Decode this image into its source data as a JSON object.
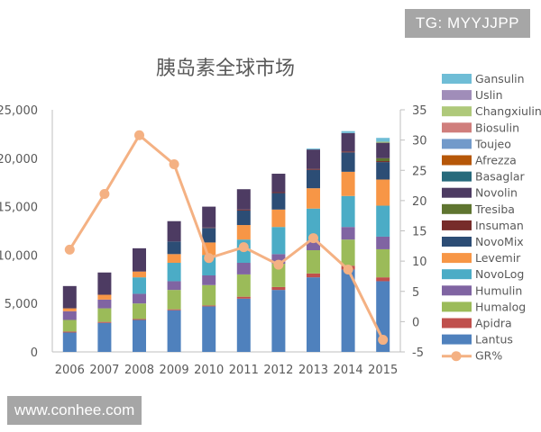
{
  "watermarks": {
    "top": "TG: MYYJJPP",
    "bottom": "www.conhee.com"
  },
  "chart_data": {
    "type": "bar+line",
    "title": "胰岛素全球市场",
    "categories": [
      "2006",
      "2007",
      "2008",
      "2009",
      "2010",
      "2011",
      "2012",
      "2013",
      "2014",
      "2015"
    ],
    "y_left": {
      "min": 0,
      "max": 25000,
      "ticks": [
        "0",
        "5,000",
        "10,000",
        "15,000",
        "20,000",
        "25,000"
      ]
    },
    "y_right": {
      "min": -5,
      "max": 35,
      "ticks": [
        "-5",
        "0",
        "5",
        "10",
        "15",
        "20",
        "25",
        "30",
        "35"
      ]
    },
    "grid": false,
    "legend_position": "right",
    "stacked_series": [
      {
        "name": "Lantus",
        "color": "#4f81bd",
        "values": [
          2000,
          3000,
          3300,
          4300,
          4700,
          5500,
          6400,
          7700,
          8500,
          7300
        ]
      },
      {
        "name": "Apidra",
        "color": "#c0504d",
        "values": [
          100,
          100,
          100,
          100,
          100,
          200,
          300,
          400,
          400,
          400
        ]
      },
      {
        "name": "Humalog",
        "color": "#9bbb59",
        "values": [
          1200,
          1400,
          1600,
          2000,
          2100,
          2300,
          2400,
          2400,
          2700,
          2900
        ]
      },
      {
        "name": "Humulin",
        "color": "#8064a2",
        "values": [
          900,
          900,
          1000,
          900,
          1000,
          1200,
          1000,
          1000,
          1300,
          1300
        ]
      },
      {
        "name": "NovoLog",
        "color": "#4bacc6",
        "values": [
          0,
          0,
          1700,
          1900,
          2100,
          2400,
          2800,
          3300,
          3200,
          3200
        ]
      },
      {
        "name": "Levemir",
        "color": "#f79646",
        "values": [
          300,
          500,
          600,
          900,
          1300,
          1500,
          1800,
          2100,
          2500,
          2700
        ]
      },
      {
        "name": "NovoMix",
        "color": "#2c4d75",
        "values": [
          0,
          0,
          0,
          1300,
          1500,
          1500,
          1700,
          1900,
          2000,
          1800
        ]
      },
      {
        "name": "Insuman",
        "color": "#772c2a",
        "values": [
          0,
          0,
          0,
          0,
          50,
          100,
          100,
          100,
          100,
          100
        ]
      },
      {
        "name": "Tresiba",
        "color": "#5f7530",
        "values": [
          0,
          0,
          0,
          0,
          0,
          0,
          0,
          0,
          0,
          300
        ]
      },
      {
        "name": "Novolin",
        "color": "#4d3b62",
        "values": [
          2300,
          2300,
          2400,
          2100,
          2150,
          2100,
          1900,
          2000,
          1900,
          1600
        ]
      },
      {
        "name": "Basaglar",
        "color": "#276a7c",
        "values": [
          0,
          0,
          0,
          0,
          0,
          0,
          0,
          0,
          0,
          0
        ]
      },
      {
        "name": "Afrezza",
        "color": "#b65708",
        "values": [
          0,
          0,
          0,
          0,
          0,
          0,
          0,
          0,
          0,
          0
        ]
      },
      {
        "name": "Toujeo",
        "color": "#729aca",
        "values": [
          0,
          0,
          0,
          0,
          0,
          0,
          0,
          0,
          0,
          0
        ]
      },
      {
        "name": "Biosulin",
        "color": "#d07e7c",
        "values": [
          0,
          0,
          0,
          0,
          0,
          0,
          0,
          0,
          0,
          0
        ]
      },
      {
        "name": "Changxiulin",
        "color": "#afc97a",
        "values": [
          0,
          0,
          0,
          0,
          0,
          0,
          0,
          0,
          0,
          100
        ]
      },
      {
        "name": "Uslin",
        "color": "#a08db9",
        "values": [
          0,
          0,
          0,
          0,
          0,
          0,
          0,
          0,
          0,
          0
        ]
      },
      {
        "name": "Gansulin",
        "color": "#6fbdd6",
        "values": [
          0,
          0,
          0,
          0,
          0,
          0,
          0,
          100,
          200,
          400
        ]
      }
    ],
    "line_series": {
      "name": "GR%",
      "color": "#f4b183",
      "axis": "right",
      "values": [
        11.9,
        21.1,
        30.8,
        26.0,
        10.5,
        12.3,
        9.4,
        13.8,
        8.6,
        -3.0
      ]
    }
  }
}
